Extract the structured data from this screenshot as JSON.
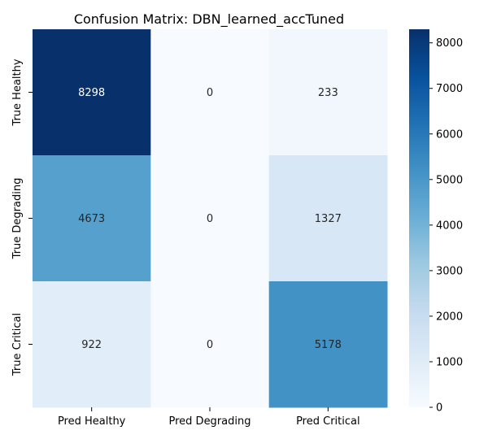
{
  "chart_data": {
    "type": "heatmap",
    "title": "Confusion Matrix: DBN_learned_accTuned",
    "xlabel": "",
    "ylabel": "",
    "x_categories": [
      "Pred Healthy",
      "Pred Degrading",
      "Pred Critical"
    ],
    "y_categories": [
      "True Healthy",
      "True Degrading",
      "True Critical"
    ],
    "values": [
      [
        8298,
        0,
        233
      ],
      [
        4673,
        0,
        1327
      ],
      [
        922,
        0,
        5178
      ]
    ],
    "colormap": "Blues",
    "colorbar": {
      "range": [
        0,
        8298
      ],
      "ticks": [
        0,
        1000,
        2000,
        3000,
        4000,
        5000,
        6000,
        7000,
        8000
      ]
    },
    "grid": false
  }
}
